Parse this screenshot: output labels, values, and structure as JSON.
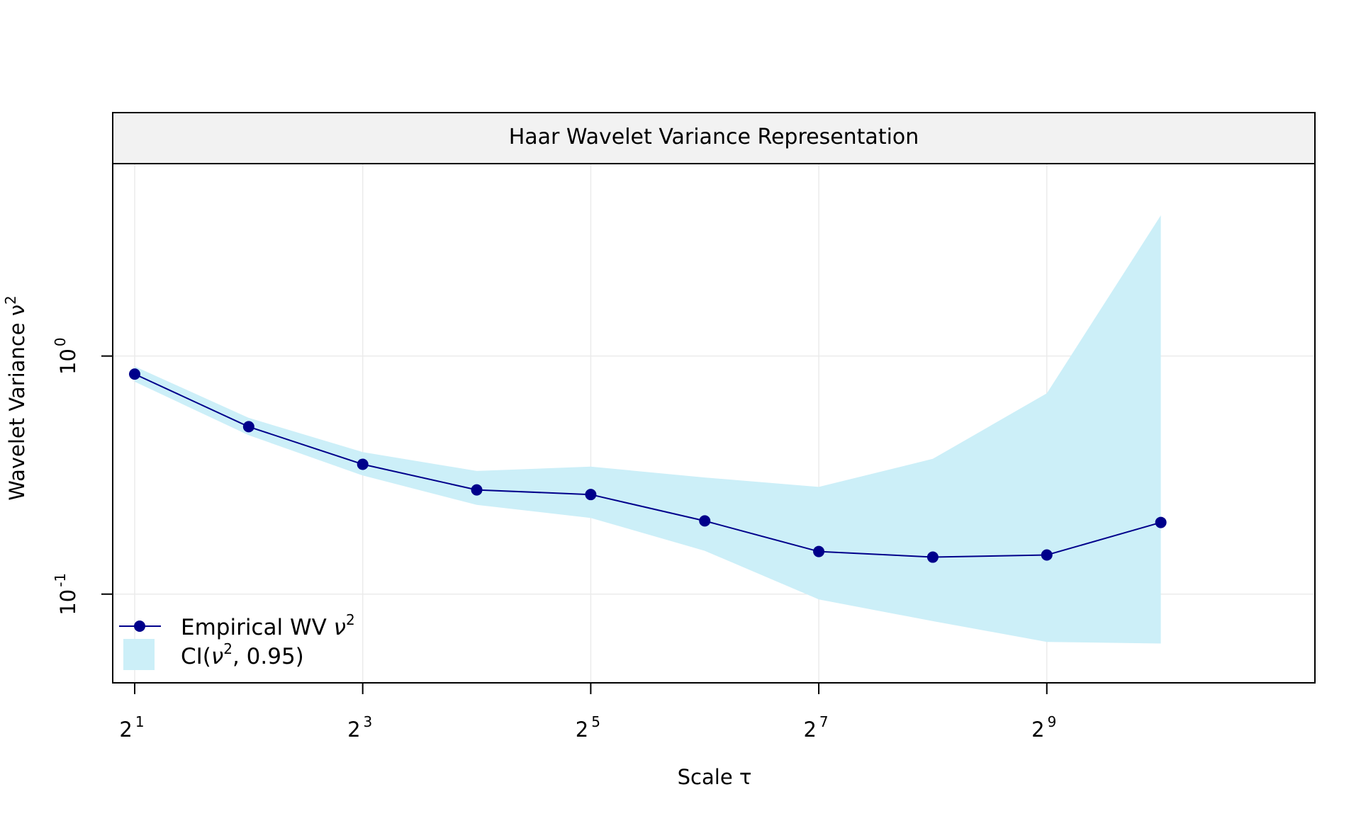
{
  "chart_data": {
    "type": "line",
    "title": "Haar Wavelet Variance Representation",
    "xlabel": "Scale τ",
    "ylabel": "Wavelet Variance ν",
    "ylabel_sup": "2",
    "x_scale": "log2",
    "y_scale": "log10",
    "xlim": [
      1.75,
      2613.0
    ],
    "ylim": [
      0.0424,
      6.43
    ],
    "x_ticks": [
      {
        "value": 2,
        "base": "2",
        "exp": "1"
      },
      {
        "value": 8,
        "base": "2",
        "exp": "3"
      },
      {
        "value": 32,
        "base": "2",
        "exp": "5"
      },
      {
        "value": 128,
        "base": "2",
        "exp": "7"
      },
      {
        "value": 512,
        "base": "2",
        "exp": "9"
      }
    ],
    "y_ticks": [
      {
        "value": 1,
        "base": "10",
        "exp": "0"
      },
      {
        "value": 0.1,
        "base": "10",
        "exp": "-1"
      }
    ],
    "grid": true,
    "legend_position": "bottom-left",
    "x": [
      2,
      4,
      8,
      16,
      32,
      64,
      128,
      256,
      512,
      1024
    ],
    "series": [
      {
        "name": "Empirical WV ν²",
        "values": [
          0.84,
          0.505,
          0.351,
          0.274,
          0.262,
          0.203,
          0.151,
          0.143,
          0.146,
          0.2
        ],
        "color": "#00008B"
      }
    ],
    "ci": {
      "name": "CI(ν², 0.95)",
      "lower": [
        0.78,
        0.465,
        0.315,
        0.237,
        0.209,
        0.152,
        0.095,
        0.077,
        0.063,
        0.062
      ],
      "upper": [
        0.905,
        0.55,
        0.395,
        0.329,
        0.343,
        0.309,
        0.282,
        0.37,
        0.697,
        3.9
      ],
      "color": "#CCEFF8"
    },
    "legend": [
      {
        "label": "Empirical WV ",
        "sym": "ν",
        "sup": "2",
        "suffix": ""
      },
      {
        "label": "CI(",
        "sym": "ν",
        "sup": "2",
        "suffix": ", 0.95)"
      }
    ]
  },
  "colors": {
    "line": "#00008B",
    "ci_fill": "#CCEFF8",
    "grid": "#EBEBEB",
    "strip": "#F2F2F2"
  }
}
